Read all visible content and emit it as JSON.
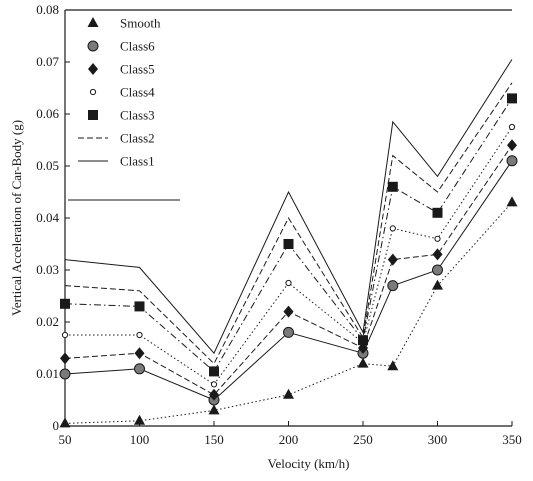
{
  "chart_data": {
    "type": "line",
    "title": "",
    "xlabel": "Velocity (km/h)",
    "ylabel": "Vertical Acceleration of Car-Body (g)",
    "xlim": [
      50,
      350
    ],
    "ylim": [
      0,
      0.08
    ],
    "x": [
      50,
      100,
      150,
      200,
      250,
      270,
      300,
      350
    ],
    "x_ticks": [
      50,
      100,
      150,
      200,
      250,
      300,
      350
    ],
    "x_tick_labels": [
      "50",
      "100",
      "150",
      "200",
      "250",
      "300",
      "350"
    ],
    "y_ticks": [
      0,
      0.01,
      0.02,
      0.03,
      0.04,
      0.05,
      0.06,
      0.07,
      0.08
    ],
    "y_tick_labels": [
      "0",
      "0.01",
      "0.02",
      "0.03",
      "0.04",
      "0.05",
      "0.06",
      "0.07",
      "0.08"
    ],
    "legend_position": "top-left",
    "grid": false,
    "series": [
      {
        "name": "Smooth",
        "marker": "triangle",
        "color": "#1a1a1a",
        "line_style": "dotted",
        "values": [
          0.0005,
          0.001,
          0.003,
          0.006,
          0.012,
          0.0115,
          0.027,
          0.043
        ]
      },
      {
        "name": "Class6",
        "marker": "circle-hatched",
        "color": "#1a1a1a",
        "line_style": "solid",
        "values": [
          0.01,
          0.011,
          0.005,
          0.018,
          0.014,
          0.027,
          0.03,
          0.051
        ]
      },
      {
        "name": "Class5",
        "marker": "diamond",
        "color": "#1a1a1a",
        "line_style": "dashed",
        "values": [
          0.013,
          0.014,
          0.006,
          0.022,
          0.015,
          0.032,
          0.033,
          0.054
        ]
      },
      {
        "name": "Class4",
        "marker": "circle-open",
        "color": "#1a1a1a",
        "line_style": "dotted",
        "values": [
          0.0175,
          0.0175,
          0.008,
          0.0275,
          0.016,
          0.038,
          0.036,
          0.0575
        ]
      },
      {
        "name": "Class3",
        "marker": "square",
        "color": "#1a1a1a",
        "line_style": "dashdot",
        "values": [
          0.0235,
          0.023,
          0.0105,
          0.035,
          0.0165,
          0.046,
          0.041,
          0.063
        ]
      },
      {
        "name": "Class2",
        "marker": "none",
        "color": "#1a1a1a",
        "line_style": "dashed",
        "values": [
          0.027,
          0.026,
          0.012,
          0.04,
          0.017,
          0.052,
          0.045,
          0.066
        ]
      },
      {
        "name": "Class1",
        "marker": "none",
        "color": "#1a1a1a",
        "line_style": "solid",
        "values": [
          0.032,
          0.0305,
          0.014,
          0.045,
          0.018,
          0.0585,
          0.048,
          0.0705
        ]
      }
    ]
  }
}
